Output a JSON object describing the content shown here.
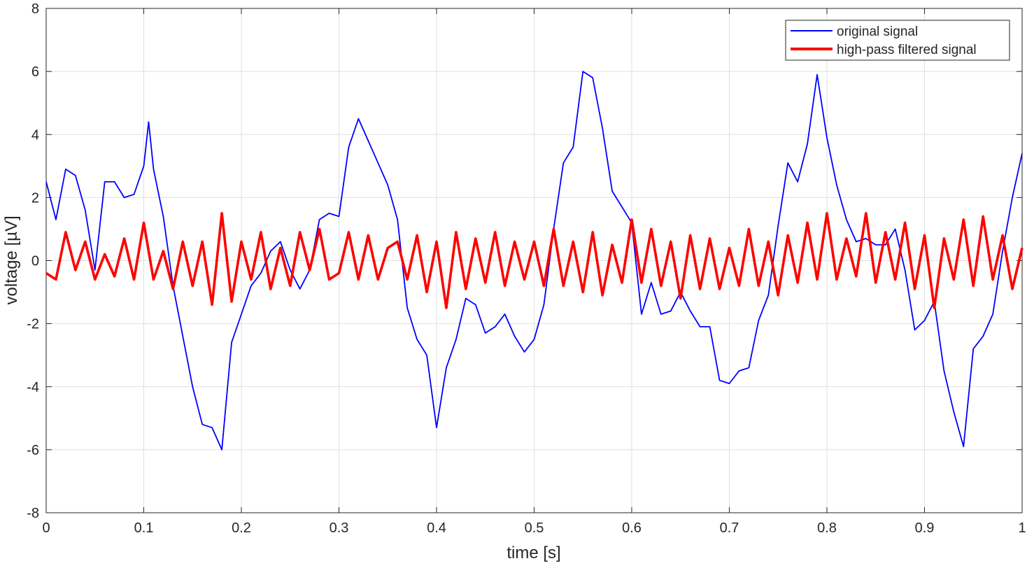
{
  "chart_data": {
    "type": "line",
    "title": "",
    "xlabel": "time [s]",
    "ylabel": "voltage [µV]",
    "xlim": [
      0,
      1
    ],
    "ylim": [
      -8,
      8
    ],
    "xticks": [
      0,
      0.1,
      0.2,
      0.3,
      0.4,
      0.5,
      0.6,
      0.7,
      0.8,
      0.9,
      1
    ],
    "xtick_labels": [
      "0",
      "0.1",
      "0.2",
      "0.3",
      "0.4",
      "0.5",
      "0.6",
      "0.7",
      "0.8",
      "0.9",
      "1"
    ],
    "yticks": [
      -8,
      -6,
      -4,
      -2,
      0,
      2,
      4,
      6,
      8
    ],
    "ytick_labels": [
      "-8",
      "-6",
      "-4",
      "-2",
      "0",
      "2",
      "4",
      "6",
      "8"
    ],
    "grid": true,
    "legend_position": "top-right",
    "series": [
      {
        "name": "original signal",
        "color": "#0000ff",
        "x": [
          0,
          0.01,
          0.02,
          0.03,
          0.04,
          0.05,
          0.06,
          0.07,
          0.08,
          0.09,
          0.1,
          0.105,
          0.11,
          0.12,
          0.13,
          0.14,
          0.15,
          0.16,
          0.17,
          0.18,
          0.19,
          0.2,
          0.21,
          0.22,
          0.23,
          0.24,
          0.25,
          0.26,
          0.27,
          0.28,
          0.29,
          0.3,
          0.31,
          0.32,
          0.33,
          0.34,
          0.35,
          0.36,
          0.37,
          0.38,
          0.39,
          0.4,
          0.41,
          0.42,
          0.43,
          0.44,
          0.45,
          0.46,
          0.47,
          0.48,
          0.49,
          0.5,
          0.51,
          0.52,
          0.53,
          0.54,
          0.55,
          0.56,
          0.57,
          0.58,
          0.59,
          0.6,
          0.61,
          0.62,
          0.63,
          0.64,
          0.65,
          0.66,
          0.67,
          0.68,
          0.69,
          0.7,
          0.71,
          0.72,
          0.73,
          0.74,
          0.75,
          0.76,
          0.77,
          0.78,
          0.79,
          0.8,
          0.81,
          0.82,
          0.83,
          0.84,
          0.85,
          0.86,
          0.87,
          0.88,
          0.89,
          0.9,
          0.91,
          0.92,
          0.93,
          0.94,
          0.95,
          0.96,
          0.97,
          0.98,
          0.99,
          1
        ],
        "y": [
          2.5,
          1.3,
          2.9,
          2.7,
          1.6,
          -0.3,
          2.5,
          2.5,
          2.0,
          2.1,
          3.0,
          4.4,
          2.9,
          1.4,
          -0.8,
          -2.4,
          -4.0,
          -5.2,
          -5.3,
          -6.0,
          -2.6,
          -1.7,
          -0.8,
          -0.4,
          0.3,
          0.6,
          -0.3,
          -0.9,
          -0.3,
          1.3,
          1.5,
          1.4,
          3.6,
          4.5,
          3.8,
          3.1,
          2.4,
          1.3,
          -1.5,
          -2.5,
          -3.0,
          -5.3,
          -3.4,
          -2.5,
          -1.2,
          -1.4,
          -2.3,
          -2.1,
          -1.7,
          -2.4,
          -2.9,
          -2.5,
          -1.4,
          1.0,
          3.1,
          3.6,
          6.0,
          5.8,
          4.2,
          2.2,
          1.7,
          1.2,
          -1.7,
          -0.7,
          -1.7,
          -1.6,
          -1.0,
          -1.6,
          -2.1,
          -2.1,
          -3.8,
          -3.9,
          -3.5,
          -3.4,
          -1.9,
          -1.1,
          1.1,
          3.1,
          2.5,
          3.7,
          5.9,
          3.9,
          2.4,
          1.3,
          0.6,
          0.7,
          0.5,
          0.5,
          1.0,
          -0.3,
          -2.2,
          -1.9,
          -1.3,
          -3.5,
          -4.8,
          -5.9,
          -2.8,
          -2.4,
          -1.7,
          0.3,
          2.0,
          3.4
        ]
      },
      {
        "name": "high-pass filtered signal",
        "color": "#ff0000",
        "x": [
          0,
          0.01,
          0.02,
          0.03,
          0.04,
          0.05,
          0.06,
          0.07,
          0.08,
          0.09,
          0.1,
          0.11,
          0.12,
          0.13,
          0.14,
          0.15,
          0.16,
          0.17,
          0.18,
          0.19,
          0.2,
          0.21,
          0.22,
          0.23,
          0.24,
          0.25,
          0.26,
          0.27,
          0.28,
          0.29,
          0.3,
          0.31,
          0.32,
          0.33,
          0.34,
          0.35,
          0.36,
          0.37,
          0.38,
          0.39,
          0.4,
          0.41,
          0.42,
          0.43,
          0.44,
          0.45,
          0.46,
          0.47,
          0.48,
          0.49,
          0.5,
          0.51,
          0.52,
          0.53,
          0.54,
          0.55,
          0.56,
          0.57,
          0.58,
          0.59,
          0.6,
          0.61,
          0.62,
          0.63,
          0.64,
          0.65,
          0.66,
          0.67,
          0.68,
          0.69,
          0.7,
          0.71,
          0.72,
          0.73,
          0.74,
          0.75,
          0.76,
          0.77,
          0.78,
          0.79,
          0.8,
          0.81,
          0.82,
          0.83,
          0.84,
          0.85,
          0.86,
          0.87,
          0.88,
          0.89,
          0.9,
          0.91,
          0.92,
          0.93,
          0.94,
          0.95,
          0.96,
          0.97,
          0.98,
          0.99,
          1
        ],
        "y": [
          -0.4,
          -0.6,
          0.9,
          -0.3,
          0.6,
          -0.6,
          0.2,
          -0.5,
          0.7,
          -0.6,
          1.2,
          -0.6,
          0.3,
          -0.9,
          0.6,
          -0.8,
          0.6,
          -1.4,
          1.5,
          -1.3,
          0.6,
          -0.6,
          0.9,
          -0.9,
          0.4,
          -0.8,
          0.9,
          -0.3,
          1.0,
          -0.6,
          -0.4,
          0.9,
          -0.6,
          0.8,
          -0.6,
          0.4,
          0.6,
          -0.6,
          0.8,
          -1.0,
          0.6,
          -1.5,
          0.9,
          -0.9,
          0.7,
          -0.7,
          0.9,
          -0.8,
          0.6,
          -0.6,
          0.6,
          -0.8,
          1.0,
          -0.8,
          0.6,
          -1.0,
          0.9,
          -1.1,
          0.5,
          -0.7,
          1.3,
          -0.7,
          1.0,
          -0.8,
          0.6,
          -1.2,
          0.8,
          -0.9,
          0.7,
          -0.9,
          0.4,
          -0.8,
          1.0,
          -0.8,
          0.6,
          -1.1,
          0.8,
          -0.7,
          1.2,
          -0.6,
          1.5,
          -0.6,
          0.7,
          -0.5,
          1.5,
          -0.7,
          0.9,
          -0.6,
          1.2,
          -0.9,
          0.8,
          -1.5,
          0.7,
          -0.6,
          1.3,
          -0.8,
          1.4,
          -0.6,
          0.8,
          -0.9,
          0.4
        ]
      }
    ]
  }
}
